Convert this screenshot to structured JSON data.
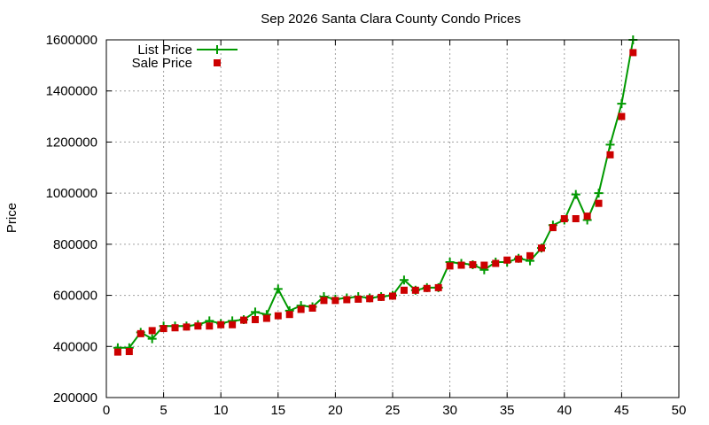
{
  "chart_data": {
    "type": "line",
    "title": "Sep 2026 Santa Clara County Condo Prices",
    "xlabel": "",
    "ylabel": "Price",
    "xlim": [
      0,
      50
    ],
    "ylim": [
      200000,
      1600000
    ],
    "x_ticks": [
      0,
      5,
      10,
      15,
      20,
      25,
      30,
      35,
      40,
      45,
      50
    ],
    "y_ticks": [
      200000,
      400000,
      600000,
      800000,
      1000000,
      1200000,
      1400000,
      1600000
    ],
    "grid": true,
    "legend_position": "top-left",
    "x": [
      1,
      2,
      3,
      4,
      5,
      6,
      7,
      8,
      9,
      10,
      11,
      12,
      13,
      14,
      15,
      16,
      17,
      18,
      19,
      20,
      21,
      22,
      23,
      24,
      25,
      26,
      27,
      28,
      29,
      30,
      31,
      32,
      33,
      34,
      35,
      36,
      37,
      38,
      39,
      40,
      41,
      42,
      43,
      44,
      45,
      46
    ],
    "series": [
      {
        "name": "List Price",
        "style": "line-plus",
        "color": "#009900",
        "values": [
          395000,
          395000,
          455000,
          430000,
          480000,
          480000,
          480000,
          485000,
          500000,
          490000,
          500000,
          505000,
          535000,
          525000,
          625000,
          540000,
          560000,
          555000,
          595000,
          585000,
          590000,
          595000,
          590000,
          595000,
          600000,
          660000,
          620000,
          630000,
          630000,
          730000,
          725000,
          720000,
          700000,
          730000,
          730000,
          745000,
          735000,
          785000,
          875000,
          895000,
          995000,
          895000,
          1000000,
          1190000,
          1350000,
          1600000
        ]
      },
      {
        "name": "Sale Price",
        "style": "square-points",
        "color": "#cc0000",
        "values": [
          378000,
          380000,
          450000,
          462000,
          470000,
          473000,
          476000,
          480000,
          480000,
          485000,
          485000,
          503000,
          505000,
          510000,
          520000,
          525000,
          545000,
          550000,
          580000,
          580000,
          583000,
          585000,
          587000,
          592000,
          597000,
          620000,
          620000,
          627000,
          630000,
          715000,
          718000,
          720000,
          718000,
          725000,
          738000,
          742000,
          755000,
          785000,
          865000,
          900000,
          900000,
          910000,
          960000,
          1150000,
          1300000,
          1550000
        ]
      }
    ]
  }
}
